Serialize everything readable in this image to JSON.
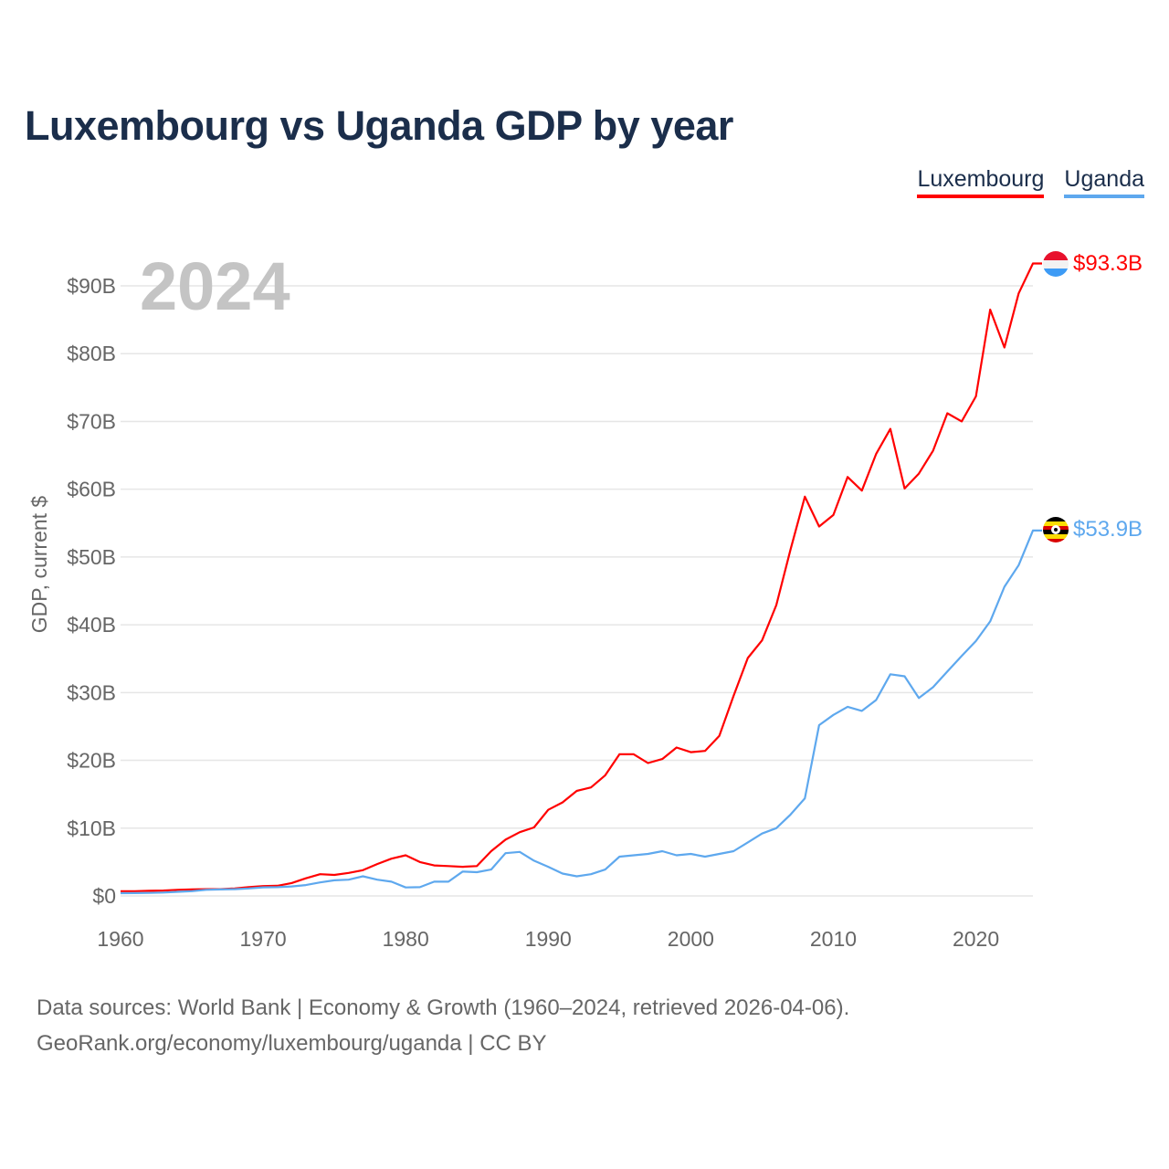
{
  "title": "Luxembourg vs Uganda GDP by year",
  "legend": [
    {
      "label": "Luxembourg",
      "color": "#ff0000"
    },
    {
      "label": "Uganda",
      "color": "#5ea8ee"
    }
  ],
  "year_label": "2024",
  "footer": {
    "line1": "Data sources: World Bank | Economy & Growth (1960–2024, retrieved 2026-04-06).",
    "line2": "GeoRank.org/economy/luxembourg/uganda | CC BY"
  },
  "chart_data": {
    "type": "line",
    "title": "Luxembourg vs Uganda GDP by year",
    "xlabel": "",
    "ylabel": "GDP, current $",
    "xlim": [
      1960,
      2024
    ],
    "ylim": [
      0,
      90
    ],
    "x_ticks": [
      "1960",
      "1970",
      "1980",
      "1990",
      "2000",
      "2010",
      "2020"
    ],
    "y_ticks": [
      "$0",
      "$10B",
      "$20B",
      "$30B",
      "$40B",
      "$50B",
      "$60B",
      "$70B",
      "$80B",
      "$90B"
    ],
    "grid": true,
    "legend_position": "top-right",
    "x_start": 1960,
    "series": [
      {
        "name": "Luxembourg",
        "color": "#ff0000",
        "end_label": "$93.3B",
        "values": [
          0.7,
          0.7,
          0.75,
          0.8,
          0.9,
          0.95,
          1.0,
          1.0,
          1.1,
          1.3,
          1.45,
          1.5,
          1.9,
          2.6,
          3.2,
          3.1,
          3.4,
          3.8,
          4.7,
          5.5,
          6.0,
          5.0,
          4.5,
          4.4,
          4.3,
          4.4,
          6.6,
          8.3,
          9.4,
          10.1,
          12.7,
          13.8,
          15.5,
          16.0,
          17.8,
          20.9,
          20.9,
          19.6,
          20.2,
          21.9,
          21.2,
          21.4,
          23.6,
          29.5,
          35.1,
          37.7,
          42.9,
          51.1,
          58.9,
          54.5,
          56.2,
          61.8,
          59.8,
          65.2,
          68.9,
          60.1,
          62.3,
          65.7,
          71.2,
          70.0,
          73.7,
          86.5,
          80.9,
          88.9,
          93.3
        ]
      },
      {
        "name": "Uganda",
        "color": "#5ea8ee",
        "end_label": "$53.9B",
        "values": [
          0.4,
          0.42,
          0.45,
          0.5,
          0.6,
          0.7,
          0.9,
          0.95,
          1.0,
          1.1,
          1.26,
          1.3,
          1.4,
          1.6,
          2.0,
          2.3,
          2.4,
          2.9,
          2.4,
          2.1,
          1.25,
          1.3,
          2.1,
          2.1,
          3.6,
          3.5,
          3.9,
          6.3,
          6.5,
          5.2,
          4.3,
          3.3,
          2.9,
          3.2,
          3.9,
          5.8,
          6.0,
          6.2,
          6.6,
          6.0,
          6.2,
          5.8,
          6.2,
          6.6,
          7.9,
          9.2,
          10.0,
          12.0,
          14.4,
          25.2,
          26.7,
          27.9,
          27.3,
          28.9,
          32.7,
          32.4,
          29.2,
          30.8,
          33.1,
          35.4,
          37.6,
          40.5,
          45.6,
          48.8,
          53.9
        ]
      }
    ]
  }
}
